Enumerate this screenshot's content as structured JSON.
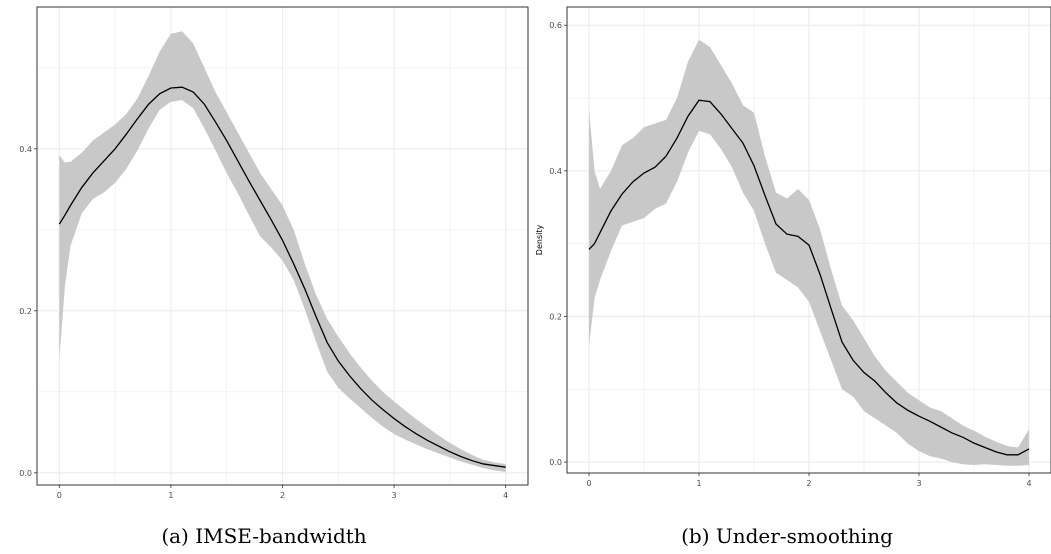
{
  "colors": {
    "band": "#c8c8c8",
    "line": "#000000",
    "grid": "#ebebeb",
    "border": "#333333"
  },
  "chart_data": [
    {
      "type": "line",
      "ylabel": "",
      "xlim": [
        -0.2,
        4.2
      ],
      "ylim": [
        -0.015,
        0.575
      ],
      "xticks": [
        0,
        1,
        2,
        3,
        4
      ],
      "xtick_labels": [
        "0",
        "1",
        "2",
        "3",
        "4"
      ],
      "yticks": [
        0.0,
        0.2,
        0.4
      ],
      "ytick_labels": [
        "0.0",
        "0.2",
        "0.4"
      ],
      "grid": true,
      "caption": "(a) IMSE-bandwidth",
      "series": [
        {
          "x": [
            0,
            0.05,
            0.1,
            0.2,
            0.3,
            0.4,
            0.5,
            0.6,
            0.7,
            0.8,
            0.9,
            1.0,
            1.1,
            1.2,
            1.3,
            1.4,
            1.5,
            1.6,
            1.7,
            1.8,
            1.9,
            2.0,
            2.1,
            2.2,
            2.3,
            2.4,
            2.5,
            2.6,
            2.7,
            2.8,
            2.9,
            3.0,
            3.1,
            3.2,
            3.3,
            3.4,
            3.5,
            3.6,
            3.7,
            3.8,
            3.9,
            4.0
          ],
          "y": [
            0.307,
            0.318,
            0.33,
            0.352,
            0.37,
            0.385,
            0.4,
            0.418,
            0.437,
            0.455,
            0.468,
            0.475,
            0.476,
            0.47,
            0.455,
            0.433,
            0.41,
            0.385,
            0.36,
            0.336,
            0.312,
            0.287,
            0.258,
            0.227,
            0.193,
            0.161,
            0.138,
            0.12,
            0.104,
            0.09,
            0.078,
            0.067,
            0.057,
            0.048,
            0.04,
            0.033,
            0.026,
            0.02,
            0.015,
            0.011,
            0.009,
            0.007
          ],
          "lower": [
            0.14,
            0.23,
            0.28,
            0.32,
            0.338,
            0.346,
            0.358,
            0.375,
            0.398,
            0.425,
            0.448,
            0.458,
            0.46,
            0.45,
            0.425,
            0.398,
            0.37,
            0.345,
            0.318,
            0.292,
            0.278,
            0.262,
            0.238,
            0.202,
            0.162,
            0.125,
            0.105,
            0.092,
            0.08,
            0.068,
            0.057,
            0.048,
            0.041,
            0.035,
            0.029,
            0.024,
            0.019,
            0.014,
            0.01,
            0.006,
            0.003,
            0.001
          ],
          "upper": [
            0.392,
            0.383,
            0.384,
            0.395,
            0.41,
            0.42,
            0.43,
            0.443,
            0.462,
            0.49,
            0.52,
            0.542,
            0.545,
            0.53,
            0.5,
            0.47,
            0.445,
            0.42,
            0.395,
            0.37,
            0.35,
            0.33,
            0.3,
            0.258,
            0.22,
            0.19,
            0.168,
            0.148,
            0.13,
            0.114,
            0.1,
            0.088,
            0.077,
            0.066,
            0.056,
            0.046,
            0.037,
            0.029,
            0.022,
            0.016,
            0.013,
            0.011
          ]
        }
      ]
    },
    {
      "type": "line",
      "ylabel": "Density",
      "xlim": [
        -0.2,
        4.2
      ],
      "ylim": [
        -0.015,
        0.625
      ],
      "xticks": [
        0,
        1,
        2,
        3,
        4
      ],
      "xtick_labels": [
        "0",
        "1",
        "2",
        "3",
        "4"
      ],
      "yticks": [
        0.0,
        0.2,
        0.4,
        0.6
      ],
      "ytick_labels": [
        "0.0",
        "0.2",
        "0.4",
        "0.6"
      ],
      "grid": true,
      "caption": "(b) Under-smoothing",
      "series": [
        {
          "x": [
            0,
            0.05,
            0.1,
            0.2,
            0.3,
            0.4,
            0.5,
            0.6,
            0.7,
            0.8,
            0.9,
            1.0,
            1.1,
            1.2,
            1.3,
            1.4,
            1.5,
            1.6,
            1.7,
            1.8,
            1.9,
            2.0,
            2.1,
            2.2,
            2.3,
            2.4,
            2.5,
            2.6,
            2.7,
            2.8,
            2.9,
            3.0,
            3.1,
            3.2,
            3.3,
            3.4,
            3.5,
            3.6,
            3.7,
            3.8,
            3.9,
            4.0
          ],
          "y": [
            0.292,
            0.3,
            0.315,
            0.345,
            0.368,
            0.385,
            0.397,
            0.405,
            0.42,
            0.445,
            0.475,
            0.497,
            0.495,
            0.478,
            0.458,
            0.438,
            0.407,
            0.366,
            0.327,
            0.313,
            0.31,
            0.298,
            0.258,
            0.211,
            0.165,
            0.14,
            0.123,
            0.111,
            0.095,
            0.081,
            0.071,
            0.063,
            0.056,
            0.048,
            0.04,
            0.034,
            0.026,
            0.02,
            0.014,
            0.01,
            0.01,
            0.018
          ],
          "lower": [
            0.16,
            0.225,
            0.25,
            0.29,
            0.325,
            0.33,
            0.335,
            0.348,
            0.355,
            0.385,
            0.425,
            0.455,
            0.45,
            0.43,
            0.405,
            0.37,
            0.345,
            0.3,
            0.26,
            0.25,
            0.24,
            0.22,
            0.18,
            0.14,
            0.1,
            0.09,
            0.07,
            0.06,
            0.05,
            0.04,
            0.025,
            0.015,
            0.008,
            0.005,
            0.0,
            -0.003,
            -0.004,
            -0.003,
            -0.004,
            -0.005,
            -0.005,
            -0.004
          ],
          "upper": [
            0.485,
            0.4,
            0.375,
            0.4,
            0.435,
            0.445,
            0.46,
            0.465,
            0.47,
            0.5,
            0.55,
            0.58,
            0.57,
            0.545,
            0.52,
            0.49,
            0.48,
            0.42,
            0.37,
            0.362,
            0.375,
            0.36,
            0.32,
            0.265,
            0.215,
            0.195,
            0.17,
            0.145,
            0.125,
            0.11,
            0.095,
            0.085,
            0.075,
            0.07,
            0.06,
            0.05,
            0.043,
            0.035,
            0.028,
            0.022,
            0.02,
            0.045
          ]
        }
      ]
    }
  ]
}
